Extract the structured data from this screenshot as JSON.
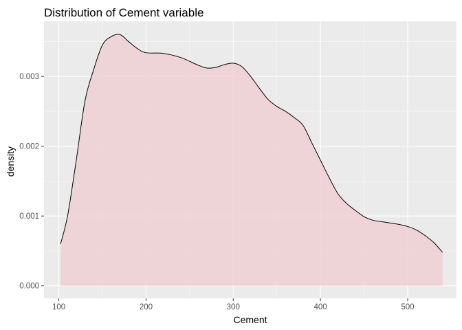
{
  "chart_data": {
    "type": "area",
    "title": "Distribution of Cement variable",
    "xlabel": "Cement",
    "ylabel": "density",
    "xlim": [
      83,
      556
    ],
    "ylim": [
      -0.00018,
      0.00379
    ],
    "x_ticks": [
      100,
      200,
      300,
      400,
      500
    ],
    "x_tick_labels": [
      "100",
      "200",
      "300",
      "400",
      "500"
    ],
    "y_ticks": [
      0.0,
      0.001,
      0.002,
      0.003
    ],
    "y_tick_labels": [
      "0.000",
      "0.001",
      "0.002",
      "0.003"
    ],
    "grid": true,
    "legend": "none",
    "colors": {
      "panel_background": "#ebebeb",
      "grid_major": "#ffffff",
      "fill": "#f0d0d3",
      "line": "#000000"
    },
    "series": [
      {
        "x": [
          102,
          110,
          120,
          130,
          140,
          150,
          160,
          170,
          180,
          190,
          200,
          220,
          240,
          260,
          270,
          280,
          290,
          300,
          310,
          320,
          330,
          340,
          350,
          360,
          370,
          380,
          390,
          400,
          410,
          420,
          430,
          440,
          450,
          460,
          470,
          480,
          490,
          500,
          510,
          520,
          530,
          540
        ],
        "y": [
          0.0006,
          0.001,
          0.0018,
          0.00265,
          0.0031,
          0.00345,
          0.00357,
          0.0036,
          0.0035,
          0.0034,
          0.00334,
          0.00333,
          0.00327,
          0.00316,
          0.00312,
          0.00313,
          0.00317,
          0.00319,
          0.00314,
          0.003,
          0.00283,
          0.00267,
          0.00257,
          0.0025,
          0.00241,
          0.0023,
          0.00205,
          0.0018,
          0.00155,
          0.00132,
          0.00118,
          0.00108,
          0.00099,
          0.00094,
          0.00092,
          0.0009,
          0.00088,
          0.00085,
          0.0008,
          0.00072,
          0.00062,
          0.00048
        ]
      }
    ]
  }
}
